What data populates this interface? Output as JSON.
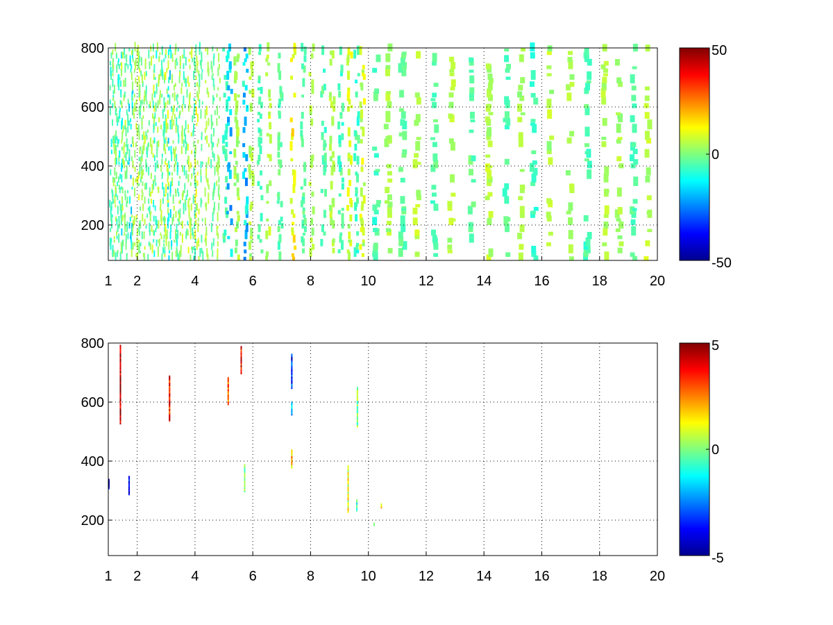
{
  "chart_data": [
    {
      "type": "heatmap",
      "title": "",
      "xlabel": "",
      "ylabel": "",
      "xlim": [
        1,
        20
      ],
      "ylim": [
        80,
        800
      ],
      "x_ticks": [
        "1",
        "2",
        "4",
        "6",
        "8",
        "10",
        "12",
        "14",
        "16",
        "18",
        "20"
      ],
      "y_ticks": [
        "200",
        "400",
        "600",
        "800"
      ],
      "grid": true,
      "colormap": "jet",
      "colorbar": {
        "clim": [
          -50,
          50
        ],
        "tick_labels": [
          "50",
          "0",
          "-50"
        ]
      },
      "pattern": "dense",
      "columns": [
        {
          "x": 1.1,
          "v": -8
        },
        {
          "x": 1.2,
          "v": 4
        },
        {
          "x": 1.3,
          "v": -6
        },
        {
          "x": 1.4,
          "v": -12
        },
        {
          "x": 1.5,
          "v": 6
        },
        {
          "x": 1.6,
          "v": -4
        },
        {
          "x": 1.75,
          "v": -15
        },
        {
          "x": 1.85,
          "v": 5
        },
        {
          "x": 2.0,
          "v": 8
        },
        {
          "x": 2.1,
          "v": -3
        },
        {
          "x": 2.2,
          "v": 6
        },
        {
          "x": 2.35,
          "v": -5
        },
        {
          "x": 2.5,
          "v": 7
        },
        {
          "x": 2.6,
          "v": -9
        },
        {
          "x": 2.75,
          "v": 5
        },
        {
          "x": 2.9,
          "v": -6
        },
        {
          "x": 3.0,
          "v": 9
        },
        {
          "x": 3.1,
          "v": -14
        },
        {
          "x": 3.25,
          "v": 4
        },
        {
          "x": 3.4,
          "v": -8
        },
        {
          "x": 3.5,
          "v": 6
        },
        {
          "x": 3.65,
          "v": -5
        },
        {
          "x": 3.8,
          "v": 8
        },
        {
          "x": 3.95,
          "v": -6
        },
        {
          "x": 4.05,
          "v": 10
        },
        {
          "x": 4.2,
          "v": -5
        },
        {
          "x": 4.4,
          "v": 6
        },
        {
          "x": 4.6,
          "v": -4
        },
        {
          "x": 4.8,
          "v": 5
        },
        {
          "x": 5.0,
          "v": -7
        },
        {
          "x": 5.15,
          "v": -22
        },
        {
          "x": 5.4,
          "v": 5
        },
        {
          "x": 5.7,
          "v": -20
        },
        {
          "x": 5.9,
          "v": 6
        },
        {
          "x": 6.2,
          "v": -5
        },
        {
          "x": 6.5,
          "v": 7
        },
        {
          "x": 6.9,
          "v": -4
        },
        {
          "x": 7.35,
          "v": 14
        },
        {
          "x": 7.7,
          "v": -5
        },
        {
          "x": 8.0,
          "v": 6
        },
        {
          "x": 8.4,
          "v": -6
        },
        {
          "x": 8.7,
          "v": 5
        },
        {
          "x": 9.0,
          "v": -7
        },
        {
          "x": 9.3,
          "v": 9
        },
        {
          "x": 9.55,
          "v": -8
        },
        {
          "x": 9.75,
          "v": 10
        },
        {
          "x": 10.2,
          "v": -6
        },
        {
          "x": 10.6,
          "v": 5
        },
        {
          "x": 11.1,
          "v": -4
        },
        {
          "x": 11.6,
          "v": 6
        },
        {
          "x": 12.2,
          "v": -5
        },
        {
          "x": 12.8,
          "v": 5
        },
        {
          "x": 13.5,
          "v": -4
        },
        {
          "x": 14.1,
          "v": 6
        },
        {
          "x": 14.7,
          "v": -5
        },
        {
          "x": 15.2,
          "v": 5
        },
        {
          "x": 15.65,
          "v": -8
        },
        {
          "x": 16.2,
          "v": 7
        },
        {
          "x": 16.9,
          "v": 5
        },
        {
          "x": 17.5,
          "v": -5
        },
        {
          "x": 18.1,
          "v": 6
        },
        {
          "x": 18.6,
          "v": 5
        },
        {
          "x": 19.1,
          "v": -5
        },
        {
          "x": 19.6,
          "v": 6
        }
      ]
    },
    {
      "type": "heatmap",
      "title": "",
      "xlabel": "",
      "ylabel": "",
      "xlim": [
        1,
        20
      ],
      "ylim": [
        80,
        800
      ],
      "x_ticks": [
        "1",
        "2",
        "4",
        "6",
        "8",
        "10",
        "12",
        "14",
        "16",
        "18",
        "20"
      ],
      "y_ticks": [
        "200",
        "400",
        "600",
        "800"
      ],
      "grid": true,
      "colormap": "jet",
      "colorbar": {
        "clim": [
          -5,
          5
        ],
        "tick_labels": [
          "5",
          "0",
          "-5"
        ]
      },
      "pattern": "sparse",
      "streaks": [
        {
          "x": 1.02,
          "y0": 310,
          "y1": 340,
          "v": -4.5
        },
        {
          "x": 1.42,
          "y0": 530,
          "y1": 790,
          "v": 4.5
        },
        {
          "x": 1.72,
          "y0": 290,
          "y1": 345,
          "v": -3.5
        },
        {
          "x": 3.12,
          "y0": 540,
          "y1": 690,
          "v": 3.5
        },
        {
          "x": 5.15,
          "y0": 595,
          "y1": 680,
          "v": 3.0
        },
        {
          "x": 5.6,
          "y0": 700,
          "y1": 790,
          "v": 4.0
        },
        {
          "x": 5.72,
          "y0": 300,
          "y1": 390,
          "v": 0.5
        },
        {
          "x": 7.35,
          "y0": 650,
          "y1": 760,
          "v": -3.5
        },
        {
          "x": 7.35,
          "y0": 560,
          "y1": 600,
          "v": -1.5
        },
        {
          "x": 7.35,
          "y0": 380,
          "y1": 440,
          "v": 2.0
        },
        {
          "x": 9.3,
          "y0": 230,
          "y1": 385,
          "v": 1.0
        },
        {
          "x": 9.6,
          "y0": 235,
          "y1": 270,
          "v": -1.0
        },
        {
          "x": 9.62,
          "y0": 520,
          "y1": 650,
          "v": 0.3
        },
        {
          "x": 10.45,
          "y0": 245,
          "y1": 255,
          "v": 1.0
        },
        {
          "x": 10.2,
          "y0": 185,
          "y1": 190,
          "v": 0.8
        }
      ]
    }
  ]
}
